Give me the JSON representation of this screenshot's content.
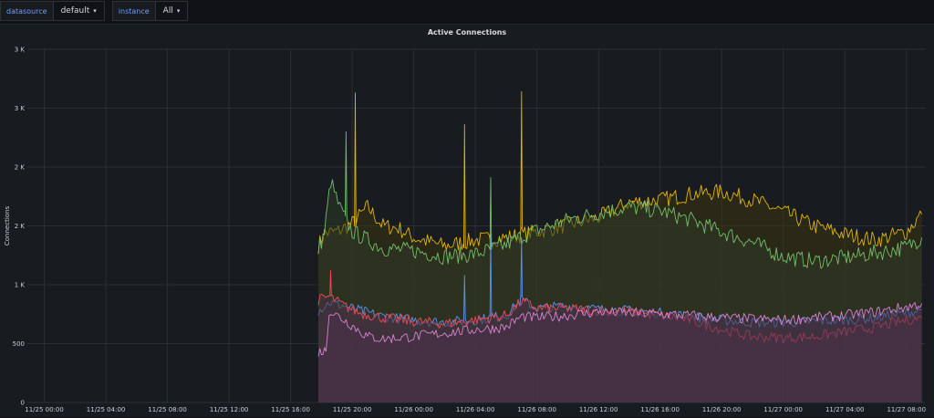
{
  "variables": [
    {
      "label": "datasource",
      "value": "default"
    },
    {
      "label": "instance",
      "value": "All"
    }
  ],
  "panel": {
    "title": "Active Connections"
  },
  "chart_data": {
    "type": "area",
    "title": "Active Connections",
    "ylabel": "Connections",
    "y_ticks": [
      "0",
      "500",
      "1 K",
      "2 K",
      "2 K",
      "3 K",
      "3 K"
    ],
    "ylim": [
      0,
      3000
    ],
    "x_ticks": [
      "11/25 00:00",
      "11/25 04:00",
      "11/25 08:00",
      "11/25 12:00",
      "11/25 16:00",
      "11/25 20:00",
      "11/26 00:00",
      "11/26 04:00",
      "11/26 08:00",
      "11/26 12:00",
      "11/26 16:00",
      "11/26 20:00",
      "11/27 00:00",
      "11/27 04:00",
      "11/27 08:00"
    ],
    "x_range_hours": [
      -1.1,
      57.2
    ],
    "grid": true,
    "series": [
      {
        "color": "#e0b400",
        "fill": "#3a3513",
        "points": [
          [
            17.8,
            1330
          ],
          [
            18.2,
            1440
          ],
          [
            19,
            1450
          ],
          [
            20,
            1520
          ],
          [
            21,
            1660
          ],
          [
            22,
            1500
          ],
          [
            23,
            1480
          ],
          [
            24,
            1400
          ],
          [
            26,
            1330
          ],
          [
            28,
            1380
          ],
          [
            30,
            1400
          ],
          [
            32,
            1450
          ],
          [
            34,
            1510
          ],
          [
            36,
            1570
          ],
          [
            38,
            1700
          ],
          [
            40,
            1720
          ],
          [
            42,
            1770
          ],
          [
            44,
            1790
          ],
          [
            46,
            1720
          ],
          [
            48,
            1620
          ],
          [
            50,
            1500
          ],
          [
            52,
            1430
          ],
          [
            54,
            1380
          ],
          [
            56,
            1450
          ],
          [
            57,
            1600
          ]
        ],
        "spikes": [
          [
            20.2,
            2630
          ],
          [
            27.3,
            2360
          ],
          [
            31.0,
            2640
          ]
        ]
      },
      {
        "color": "#73bf69",
        "fill": "#2e3a26",
        "points": [
          [
            17.8,
            1300
          ],
          [
            18.2,
            1440
          ],
          [
            18.6,
            1880
          ],
          [
            19.2,
            1650
          ],
          [
            20,
            1450
          ],
          [
            21,
            1380
          ],
          [
            22,
            1310
          ],
          [
            24,
            1290
          ],
          [
            26,
            1240
          ],
          [
            28,
            1260
          ],
          [
            30,
            1340
          ],
          [
            31,
            1410
          ],
          [
            32,
            1460
          ],
          [
            34,
            1550
          ],
          [
            36,
            1610
          ],
          [
            38,
            1660
          ],
          [
            40,
            1630
          ],
          [
            42,
            1550
          ],
          [
            44,
            1450
          ],
          [
            46,
            1360
          ],
          [
            48,
            1240
          ],
          [
            50,
            1200
          ],
          [
            52,
            1230
          ],
          [
            54,
            1270
          ],
          [
            56,
            1320
          ],
          [
            57,
            1400
          ]
        ],
        "spikes": [
          [
            19.6,
            2300
          ],
          [
            29.0,
            1910
          ]
        ]
      },
      {
        "color": "#5794f2",
        "fill": "#3a3346",
        "points": [
          [
            17.8,
            780
          ],
          [
            18.5,
            850
          ],
          [
            19.5,
            820
          ],
          [
            20.5,
            780
          ],
          [
            22,
            730
          ],
          [
            24,
            700
          ],
          [
            26,
            680
          ],
          [
            28,
            700
          ],
          [
            30,
            740
          ],
          [
            31,
            870
          ],
          [
            32,
            800
          ],
          [
            34,
            820
          ],
          [
            36,
            790
          ],
          [
            38,
            780
          ],
          [
            40,
            760
          ],
          [
            42,
            730
          ],
          [
            44,
            700
          ],
          [
            46,
            680
          ],
          [
            48,
            680
          ],
          [
            50,
            690
          ],
          [
            52,
            700
          ],
          [
            54,
            720
          ],
          [
            56,
            760
          ],
          [
            57,
            790
          ]
        ],
        "spikes": [
          [
            27.3,
            1080
          ],
          [
            29.0,
            1430
          ],
          [
            31.0,
            1400
          ]
        ]
      },
      {
        "color": "#f2495c",
        "fill": "#4a3340",
        "points": [
          [
            17.8,
            870
          ],
          [
            18.5,
            900
          ],
          [
            19.5,
            820
          ],
          [
            20.5,
            760
          ],
          [
            22,
            720
          ],
          [
            24,
            690
          ],
          [
            26,
            670
          ],
          [
            28,
            700
          ],
          [
            30,
            740
          ],
          [
            31,
            860
          ],
          [
            32,
            800
          ],
          [
            34,
            800
          ],
          [
            36,
            780
          ],
          [
            38,
            770
          ],
          [
            40,
            740
          ],
          [
            42,
            700
          ],
          [
            44,
            620
          ],
          [
            46,
            560
          ],
          [
            48,
            550
          ],
          [
            50,
            560
          ],
          [
            52,
            600
          ],
          [
            54,
            640
          ],
          [
            56,
            700
          ],
          [
            57,
            720
          ]
        ],
        "spikes": [
          [
            18.6,
            1120
          ]
        ]
      },
      {
        "color": "#d683ce",
        "fill": "#48314a",
        "points": [
          [
            17.8,
            430
          ],
          [
            18.3,
            440
          ],
          [
            18.5,
            780
          ],
          [
            19.5,
            700
          ],
          [
            21,
            560
          ],
          [
            22,
            540
          ],
          [
            24,
            560
          ],
          [
            26,
            590
          ],
          [
            28,
            620
          ],
          [
            30,
            640
          ],
          [
            31,
            730
          ],
          [
            32,
            720
          ],
          [
            34,
            740
          ],
          [
            36,
            770
          ],
          [
            38,
            760
          ],
          [
            40,
            750
          ],
          [
            42,
            740
          ],
          [
            44,
            720
          ],
          [
            46,
            710
          ],
          [
            48,
            700
          ],
          [
            50,
            720
          ],
          [
            52,
            740
          ],
          [
            54,
            770
          ],
          [
            56,
            810
          ],
          [
            57,
            840
          ]
        ],
        "spikes": []
      }
    ]
  }
}
